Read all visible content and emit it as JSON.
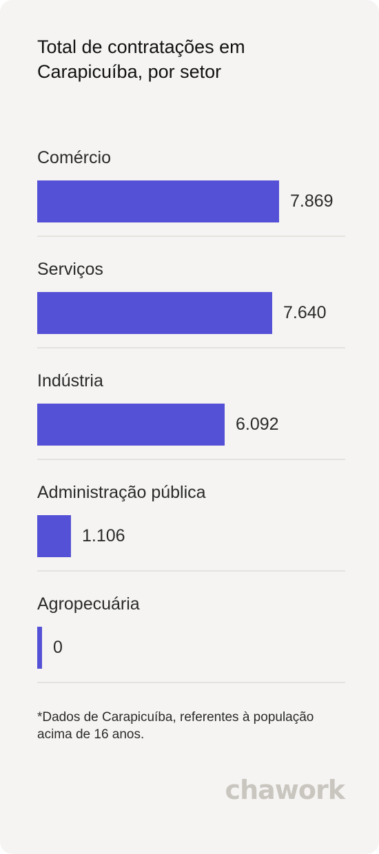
{
  "title": "Total de contratações em Carapicuíba, por setor",
  "footnote": "*Dados de Carapicuíba, referentes à população acima de 16 anos.",
  "brand": {
    "name": "chawork",
    "color": "#c9c6c0"
  },
  "colors": {
    "bar": "#5551d6",
    "background": "#f5f4f2",
    "divider": "#e4e2df"
  },
  "chart_data": {
    "type": "bar",
    "orientation": "horizontal",
    "title": "Total de contratações em Carapicuíba, por setor",
    "categories": [
      "Comércio",
      "Serviços",
      "Indústria",
      "Administração pública",
      "Agropecuária"
    ],
    "values": [
      7869,
      7640,
      6092,
      1106,
      0
    ],
    "value_labels": [
      "7.869",
      "7.640",
      "6.092",
      "1.106",
      "0"
    ],
    "xlim": [
      0,
      10000
    ],
    "grid": false,
    "legend": "none"
  }
}
